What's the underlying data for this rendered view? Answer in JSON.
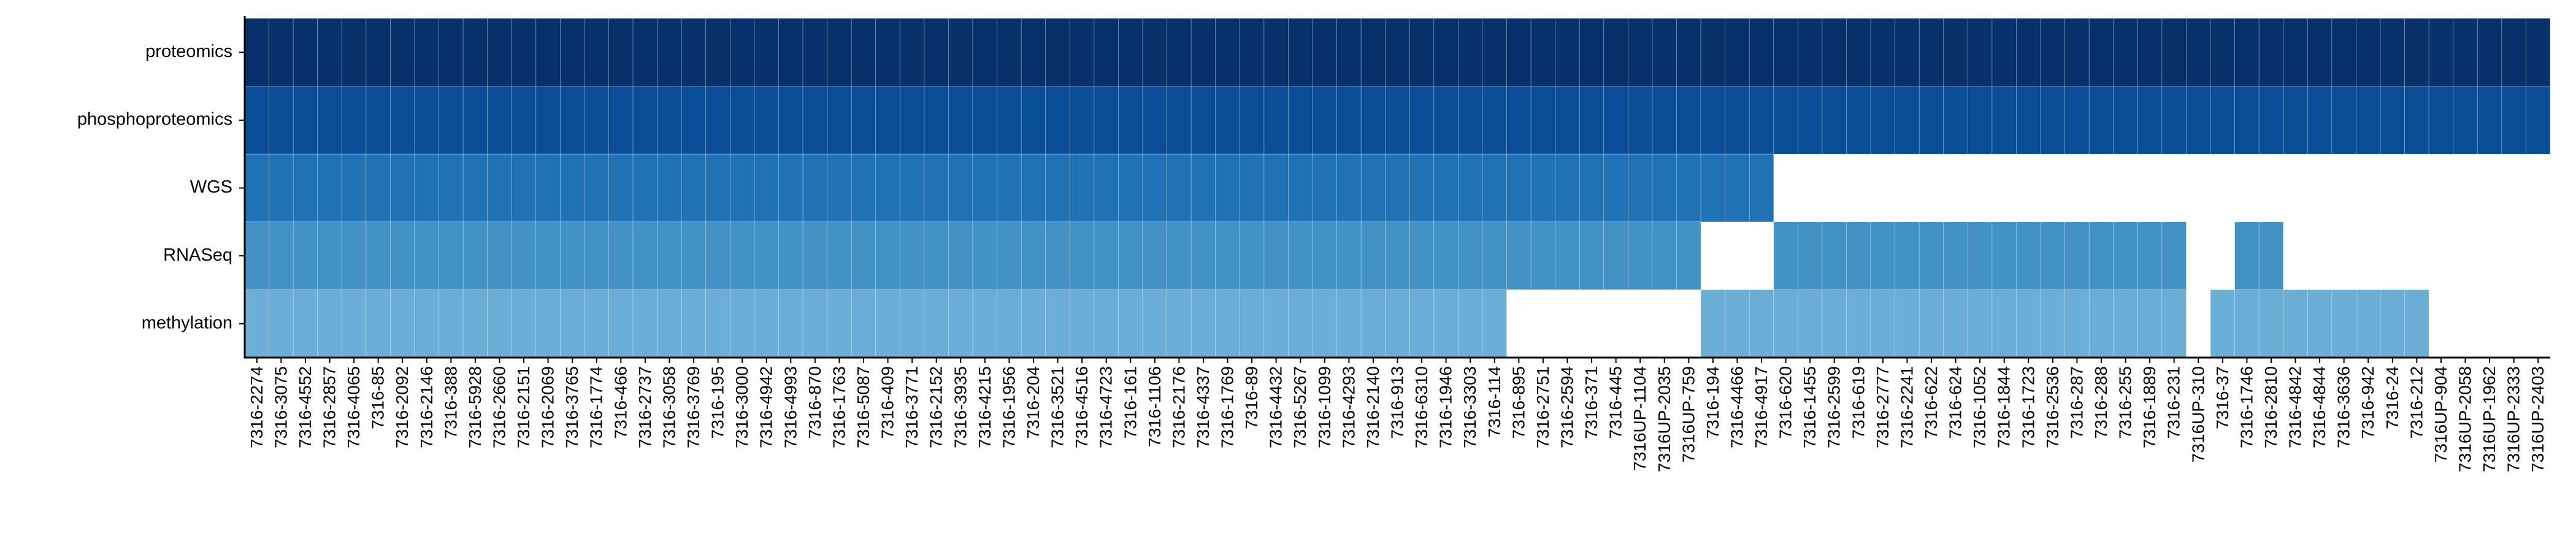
{
  "chart_data": {
    "type": "heatmap",
    "rows": [
      "proteomics",
      "phosphoproteomics",
      "WGS",
      "RNASeq",
      "methylation"
    ],
    "row_colors": [
      "#08306b",
      "#084e97",
      "#2171b5",
      "#4292c6",
      "#6baed6"
    ],
    "samples": [
      "7316-2274",
      "7316-3075",
      "7316-4552",
      "7316-2857",
      "7316-4065",
      "7316-85",
      "7316-2092",
      "7316-2146",
      "7316-388",
      "7316-5928",
      "7316-2660",
      "7316-2151",
      "7316-2069",
      "7316-3765",
      "7316-1774",
      "7316-466",
      "7316-2737",
      "7316-3058",
      "7316-3769",
      "7316-195",
      "7316-3000",
      "7316-4942",
      "7316-4993",
      "7316-870",
      "7316-1763",
      "7316-5087",
      "7316-409",
      "7316-3771",
      "7316-2152",
      "7316-3935",
      "7316-4215",
      "7316-1956",
      "7316-204",
      "7316-3521",
      "7316-4516",
      "7316-4723",
      "7316-161",
      "7316-1106",
      "7316-2176",
      "7316-4337",
      "7316-1769",
      "7316-89",
      "7316-4432",
      "7316-5267",
      "7316-1099",
      "7316-4293",
      "7316-2140",
      "7316-913",
      "7316-6310",
      "7316-1946",
      "7316-3303",
      "7316-114",
      "7316-895",
      "7316-2751",
      "7316-2594",
      "7316-371",
      "7316-445",
      "7316UP-1104",
      "7316UP-2035",
      "7316UP-759",
      "7316-194",
      "7316-4466",
      "7316-4917",
      "7316-620",
      "7316-1455",
      "7316-2599",
      "7316-619",
      "7316-2777",
      "7316-2241",
      "7316-622",
      "7316-624",
      "7316-1052",
      "7316-1844",
      "7316-1723",
      "7316-2536",
      "7316-287",
      "7316-288",
      "7316-255",
      "7316-1889",
      "7316-231",
      "7316UP-310",
      "7316-37",
      "7316-1746",
      "7316-2810",
      "7316-4842",
      "7316-4844",
      "7316-3636",
      "7316-942",
      "7316-24",
      "7316-212",
      "7316UP-904",
      "7316UP-2058",
      "7316UP-1962",
      "7316UP-2333",
      "7316UP-2403"
    ],
    "present": {
      "proteomics": [
        [
          0,
          94
        ]
      ],
      "phosphoproteomics": [
        [
          0,
          94
        ]
      ],
      "WGS": [
        [
          0,
          62
        ]
      ],
      "RNASeq": [
        [
          0,
          59
        ],
        [
          63,
          79
        ],
        [
          82,
          83
        ]
      ],
      "methylation": [
        [
          0,
          51
        ],
        [
          60,
          79
        ],
        [
          81,
          89
        ]
      ]
    },
    "present_note_ranges_are_inclusive_sample_indices": true,
    "grid": false,
    "legend": "none"
  }
}
